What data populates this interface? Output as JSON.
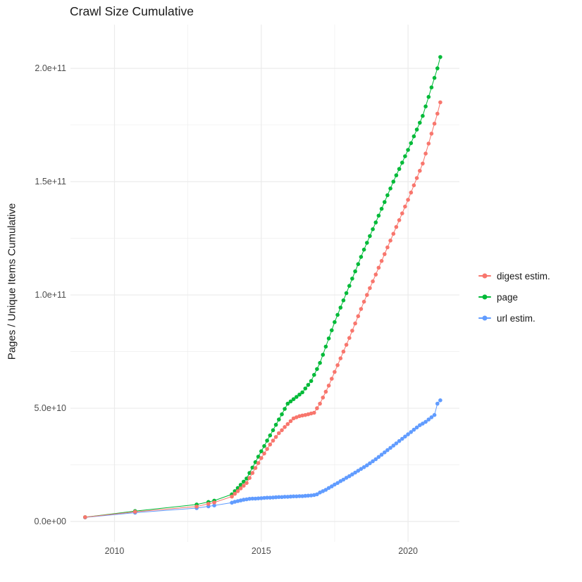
{
  "chart_data": {
    "type": "scatter",
    "title": "Crawl Size Cumulative",
    "xlabel": "",
    "ylabel": "Pages / Unique Items Cumulative",
    "legend_position": "right",
    "grid": true,
    "background_color": "#ffffff",
    "grid_color": "#ebebeb",
    "tick_label_color": "#4d4d4d",
    "y_values_unit": "1e9 (billions of pages / items)",
    "xlim": [
      2008.5,
      2021.75
    ],
    "ylim_e9": [
      -9,
      219.3
    ],
    "x_ticks": [
      {
        "value": 2010,
        "label": "2010"
      },
      {
        "value": 2015,
        "label": "2015"
      },
      {
        "value": 2020,
        "label": "2020"
      }
    ],
    "x_minor_ticks": [
      2012.5,
      2017.5
    ],
    "y_ticks": [
      {
        "value_e9": 0,
        "label": "0.0e+00"
      },
      {
        "value_e9": 50,
        "label": "5.0e+10"
      },
      {
        "value_e9": 100,
        "label": "1.0e+11"
      },
      {
        "value_e9": 150,
        "label": "1.5e+11"
      },
      {
        "value_e9": 200,
        "label": "2.0e+11"
      }
    ],
    "y_minor_ticks_e9": [
      25,
      75,
      125,
      175
    ],
    "series": [
      {
        "name": "digest estim.",
        "color": "#F8766D",
        "points_e9": [
          [
            2009,
            1.9
          ],
          [
            2010.7,
            4.3
          ],
          [
            2012.8,
            6.6
          ],
          [
            2013.2,
            7.8
          ],
          [
            2013.4,
            8.4
          ],
          [
            2014,
            11
          ],
          [
            2014.1,
            12.2
          ],
          [
            2014.2,
            13.4
          ],
          [
            2014.3,
            14.6
          ],
          [
            2014.4,
            15.8
          ],
          [
            2014.5,
            17
          ],
          [
            2014.6,
            19.2
          ],
          [
            2014.7,
            21.4
          ],
          [
            2014.8,
            23.6
          ],
          [
            2014.9,
            25.8
          ],
          [
            2015,
            28
          ],
          [
            2015.1,
            30
          ],
          [
            2015.2,
            32
          ],
          [
            2015.3,
            34
          ],
          [
            2015.4,
            35.7
          ],
          [
            2015.5,
            37.3
          ],
          [
            2015.6,
            39
          ],
          [
            2015.7,
            40.3
          ],
          [
            2015.8,
            41.7
          ],
          [
            2015.9,
            43
          ],
          [
            2016,
            44.3
          ],
          [
            2016.1,
            45.5
          ],
          [
            2016.2,
            46
          ],
          [
            2016.3,
            46.5
          ],
          [
            2016.4,
            46.8
          ],
          [
            2016.5,
            47
          ],
          [
            2016.6,
            47.3
          ],
          [
            2016.7,
            47.7
          ],
          [
            2016.8,
            48
          ],
          [
            2016.9,
            50
          ],
          [
            2017,
            52
          ],
          [
            2017.1,
            54.7
          ],
          [
            2017.2,
            57.3
          ],
          [
            2017.3,
            60
          ],
          [
            2017.4,
            63
          ],
          [
            2017.5,
            66
          ],
          [
            2017.6,
            69
          ],
          [
            2017.7,
            72
          ],
          [
            2017.8,
            75
          ],
          [
            2017.9,
            78
          ],
          [
            2018,
            81
          ],
          [
            2018.1,
            84.2
          ],
          [
            2018.2,
            87.4
          ],
          [
            2018.3,
            90.6
          ],
          [
            2018.4,
            93.8
          ],
          [
            2018.5,
            97
          ],
          [
            2018.6,
            100
          ],
          [
            2018.7,
            103
          ],
          [
            2018.8,
            106
          ],
          [
            2018.9,
            109
          ],
          [
            2019,
            112
          ],
          [
            2019.1,
            115
          ],
          [
            2019.2,
            118
          ],
          [
            2019.3,
            121
          ],
          [
            2019.4,
            124
          ],
          [
            2019.5,
            127
          ],
          [
            2019.6,
            130
          ],
          [
            2019.7,
            133
          ],
          [
            2019.8,
            136
          ],
          [
            2019.9,
            139
          ],
          [
            2020,
            142
          ],
          [
            2020.1,
            145.2
          ],
          [
            2020.2,
            148.4
          ],
          [
            2020.3,
            151.6
          ],
          [
            2020.4,
            154.8
          ],
          [
            2020.5,
            158
          ],
          [
            2020.6,
            162.4
          ],
          [
            2020.7,
            166.8
          ],
          [
            2020.8,
            171.2
          ],
          [
            2020.9,
            175.6
          ],
          [
            2021,
            180
          ],
          [
            2021.1,
            185
          ]
        ]
      },
      {
        "name": "page",
        "color": "#00BA38",
        "points_e9": [
          [
            2009,
            1.9
          ],
          [
            2010.7,
            4.6
          ],
          [
            2012.8,
            7.5
          ],
          [
            2013.2,
            8.6
          ],
          [
            2013.4,
            9.2
          ],
          [
            2014,
            12
          ],
          [
            2014.1,
            13.4
          ],
          [
            2014.2,
            14.8
          ],
          [
            2014.3,
            16.2
          ],
          [
            2014.4,
            17.6
          ],
          [
            2014.5,
            19
          ],
          [
            2014.6,
            21.4
          ],
          [
            2014.7,
            23.8
          ],
          [
            2014.8,
            26.2
          ],
          [
            2014.9,
            28.6
          ],
          [
            2015,
            31
          ],
          [
            2015.1,
            33.3
          ],
          [
            2015.2,
            35.7
          ],
          [
            2015.3,
            38
          ],
          [
            2015.4,
            40.3
          ],
          [
            2015.5,
            42.7
          ],
          [
            2015.6,
            45
          ],
          [
            2015.7,
            47.3
          ],
          [
            2015.8,
            49.7
          ],
          [
            2015.9,
            52
          ],
          [
            2016,
            53
          ],
          [
            2016.1,
            54
          ],
          [
            2016.2,
            55
          ],
          [
            2016.3,
            56
          ],
          [
            2016.4,
            57
          ],
          [
            2016.5,
            58.7
          ],
          [
            2016.6,
            60.3
          ],
          [
            2016.7,
            62
          ],
          [
            2016.8,
            64.7
          ],
          [
            2016.9,
            67.3
          ],
          [
            2017,
            70
          ],
          [
            2017.1,
            73.6
          ],
          [
            2017.2,
            77.2
          ],
          [
            2017.3,
            80.8
          ],
          [
            2017.4,
            84.4
          ],
          [
            2017.5,
            88
          ],
          [
            2017.6,
            91.2
          ],
          [
            2017.7,
            94.4
          ],
          [
            2017.8,
            97.6
          ],
          [
            2017.9,
            100.8
          ],
          [
            2018,
            104
          ],
          [
            2018.1,
            107.2
          ],
          [
            2018.2,
            110.4
          ],
          [
            2018.3,
            113.6
          ],
          [
            2018.4,
            116.8
          ],
          [
            2018.5,
            120
          ],
          [
            2018.6,
            123
          ],
          [
            2018.7,
            126
          ],
          [
            2018.8,
            129
          ],
          [
            2018.9,
            132
          ],
          [
            2019,
            135
          ],
          [
            2019.1,
            138
          ],
          [
            2019.2,
            141
          ],
          [
            2019.3,
            144
          ],
          [
            2019.4,
            147
          ],
          [
            2019.5,
            150
          ],
          [
            2019.6,
            152.8
          ],
          [
            2019.7,
            155.6
          ],
          [
            2019.8,
            158.4
          ],
          [
            2019.9,
            161.2
          ],
          [
            2020,
            164
          ],
          [
            2020.1,
            167
          ],
          [
            2020.2,
            170
          ],
          [
            2020.3,
            173
          ],
          [
            2020.4,
            176
          ],
          [
            2020.5,
            179
          ],
          [
            2020.6,
            183.2
          ],
          [
            2020.7,
            187.4
          ],
          [
            2020.8,
            191.6
          ],
          [
            2020.9,
            195.8
          ],
          [
            2021,
            200
          ],
          [
            2021.1,
            205
          ]
        ]
      },
      {
        "name": "url estim.",
        "color": "#619CFF",
        "points_e9": [
          [
            2009,
            1.8
          ],
          [
            2010.7,
            3.9
          ],
          [
            2012.8,
            5.9
          ],
          [
            2013.2,
            6.7
          ],
          [
            2013.4,
            7.1
          ],
          [
            2014,
            8.3
          ],
          [
            2014.1,
            8.7
          ],
          [
            2014.2,
            9
          ],
          [
            2014.3,
            9.3
          ],
          [
            2014.4,
            9.6
          ],
          [
            2014.5,
            9.8
          ],
          [
            2014.6,
            10
          ],
          [
            2014.7,
            10.1
          ],
          [
            2014.8,
            10.1
          ],
          [
            2014.9,
            10.2
          ],
          [
            2015,
            10.3
          ],
          [
            2015.1,
            10.4
          ],
          [
            2015.2,
            10.5
          ],
          [
            2015.3,
            10.5
          ],
          [
            2015.4,
            10.6
          ],
          [
            2015.5,
            10.7
          ],
          [
            2015.6,
            10.8
          ],
          [
            2015.7,
            10.8
          ],
          [
            2015.8,
            10.9
          ],
          [
            2015.9,
            10.9
          ],
          [
            2016,
            11
          ],
          [
            2016.1,
            11.1
          ],
          [
            2016.2,
            11.1
          ],
          [
            2016.3,
            11.2
          ],
          [
            2016.4,
            11.2
          ],
          [
            2016.5,
            11.3
          ],
          [
            2016.6,
            11.4
          ],
          [
            2016.7,
            11.5
          ],
          [
            2016.8,
            11.7
          ],
          [
            2016.9,
            12
          ],
          [
            2017,
            12.8
          ],
          [
            2017.1,
            13.4
          ],
          [
            2017.2,
            14
          ],
          [
            2017.3,
            14.8
          ],
          [
            2017.4,
            15.5
          ],
          [
            2017.5,
            16.3
          ],
          [
            2017.6,
            17
          ],
          [
            2017.7,
            17.8
          ],
          [
            2017.8,
            18.5
          ],
          [
            2017.9,
            19.3
          ],
          [
            2018,
            20
          ],
          [
            2018.1,
            20.8
          ],
          [
            2018.2,
            21.6
          ],
          [
            2018.3,
            22.4
          ],
          [
            2018.4,
            23.2
          ],
          [
            2018.5,
            24
          ],
          [
            2018.6,
            24.8
          ],
          [
            2018.7,
            25.7
          ],
          [
            2018.8,
            26.6
          ],
          [
            2018.9,
            27.5
          ],
          [
            2019,
            28.5
          ],
          [
            2019.1,
            29.5
          ],
          [
            2019.2,
            30.5
          ],
          [
            2019.3,
            31.5
          ],
          [
            2019.4,
            32.5
          ],
          [
            2019.5,
            33.5
          ],
          [
            2019.6,
            34.5
          ],
          [
            2019.7,
            35.5
          ],
          [
            2019.8,
            36.5
          ],
          [
            2019.9,
            37.5
          ],
          [
            2020,
            38.5
          ],
          [
            2020.1,
            39.5
          ],
          [
            2020.2,
            40.5
          ],
          [
            2020.3,
            41.5
          ],
          [
            2020.4,
            42.5
          ],
          [
            2020.5,
            43.2
          ],
          [
            2020.6,
            44
          ],
          [
            2020.7,
            45
          ],
          [
            2020.8,
            46
          ],
          [
            2020.9,
            47
          ],
          [
            2021,
            52
          ],
          [
            2021.1,
            53.5
          ]
        ]
      }
    ]
  }
}
